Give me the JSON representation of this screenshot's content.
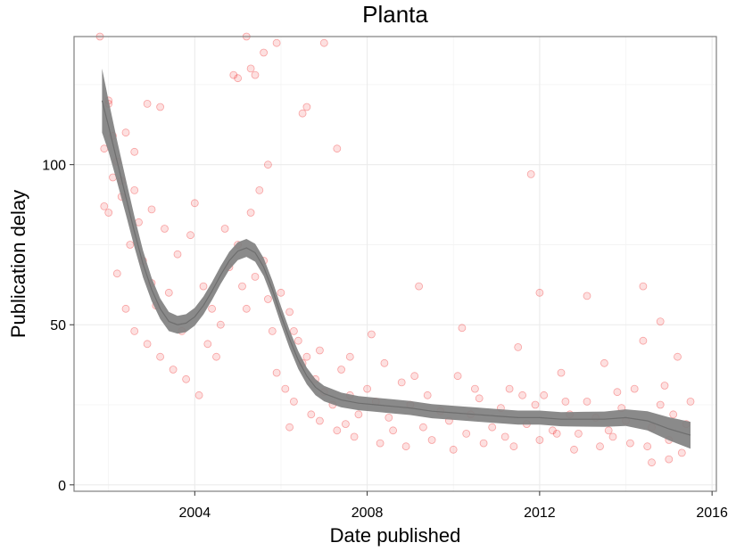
{
  "chart_data": {
    "type": "scatter",
    "title": "Planta",
    "xlabel": "Date published",
    "ylabel": "Publication delay",
    "xlim": [
      2001.2,
      2016.1
    ],
    "ylim": [
      -2,
      140
    ],
    "x_ticks": [
      {
        "value": 2004,
        "label": "2004"
      },
      {
        "value": 2008,
        "label": "2008"
      },
      {
        "value": 2012,
        "label": "2012"
      },
      {
        "value": 2016,
        "label": "2016"
      }
    ],
    "y_ticks": [
      {
        "value": 0,
        "label": "0"
      },
      {
        "value": 50,
        "label": "50"
      },
      {
        "value": 100,
        "label": "100"
      }
    ],
    "grid": true,
    "legend": "none",
    "colors": {
      "points": "#ee1111",
      "smooth_band": "#808080",
      "panel_border": "#7f7f7f",
      "grid": "#ebebeb"
    },
    "series": [
      {
        "kind": "points",
        "points": [
          [
            2001.8,
            140
          ],
          [
            2002.0,
            119
          ],
          [
            2002.3,
            95
          ],
          [
            2002.9,
            119
          ],
          [
            2003.2,
            118
          ],
          [
            2005.3,
            130
          ],
          [
            2005.4,
            128
          ],
          [
            2005.2,
            140
          ],
          [
            2005.6,
            135
          ],
          [
            2005.9,
            138
          ],
          [
            2007.0,
            138
          ],
          [
            2004.9,
            128
          ],
          [
            2005.0,
            127
          ],
          [
            2006.6,
            118
          ],
          [
            2006.5,
            116
          ],
          [
            2005.7,
            100
          ],
          [
            2007.3,
            105
          ],
          [
            2011.8,
            97
          ],
          [
            2012.0,
            60
          ],
          [
            2013.1,
            59
          ],
          [
            2014.4,
            62
          ],
          [
            2014.8,
            51
          ],
          [
            2002.1,
            109
          ],
          [
            2002.4,
            110
          ],
          [
            2002.6,
            104
          ],
          [
            2002.2,
            101
          ],
          [
            2001.9,
            105
          ],
          [
            2002.3,
            90
          ],
          [
            2002.0,
            85
          ],
          [
            2002.7,
            82
          ],
          [
            2003.0,
            86
          ],
          [
            2002.5,
            75
          ],
          [
            2002.8,
            70
          ],
          [
            2002.2,
            66
          ],
          [
            2003.3,
            80
          ],
          [
            2003.6,
            72
          ],
          [
            2004.0,
            88
          ],
          [
            2003.9,
            78
          ],
          [
            2003.4,
            60
          ],
          [
            2003.1,
            56
          ],
          [
            2004.2,
            62
          ],
          [
            2004.4,
            55
          ],
          [
            2002.4,
            55
          ],
          [
            2002.6,
            48
          ],
          [
            2002.9,
            44
          ],
          [
            2003.2,
            40
          ],
          [
            2003.5,
            36
          ],
          [
            2003.8,
            33
          ],
          [
            2004.1,
            28
          ],
          [
            2004.3,
            44
          ],
          [
            2004.6,
            50
          ],
          [
            2004.8,
            68
          ],
          [
            2005.1,
            62
          ],
          [
            2004.7,
            80
          ],
          [
            2005.3,
            85
          ],
          [
            2005.5,
            92
          ],
          [
            2005.2,
            55
          ],
          [
            2005.6,
            70
          ],
          [
            2005.8,
            48
          ],
          [
            2006.0,
            60
          ],
          [
            2006.2,
            54
          ],
          [
            2006.4,
            45
          ],
          [
            2006.6,
            40
          ],
          [
            2005.9,
            35
          ],
          [
            2006.1,
            30
          ],
          [
            2006.3,
            26
          ],
          [
            2006.5,
            38
          ],
          [
            2006.8,
            33
          ],
          [
            2007.0,
            29
          ],
          [
            2007.2,
            25
          ],
          [
            2007.4,
            36
          ],
          [
            2007.6,
            28
          ],
          [
            2007.8,
            22
          ],
          [
            2008.0,
            30
          ],
          [
            2008.1,
            47
          ],
          [
            2008.2,
            26
          ],
          [
            2008.5,
            21
          ],
          [
            2008.8,
            32
          ],
          [
            2009.0,
            25
          ],
          [
            2009.2,
            62
          ],
          [
            2009.4,
            28
          ],
          [
            2009.7,
            23
          ],
          [
            2009.9,
            20
          ],
          [
            2010.1,
            34
          ],
          [
            2010.2,
            49
          ],
          [
            2010.4,
            22
          ],
          [
            2010.6,
            27
          ],
          [
            2010.9,
            18
          ],
          [
            2011.1,
            24
          ],
          [
            2011.3,
            30
          ],
          [
            2011.5,
            43
          ],
          [
            2011.7,
            19
          ],
          [
            2011.9,
            25
          ],
          [
            2012.1,
            28
          ],
          [
            2012.3,
            17
          ],
          [
            2012.5,
            35
          ],
          [
            2012.7,
            22
          ],
          [
            2012.9,
            16
          ],
          [
            2013.1,
            26
          ],
          [
            2013.3,
            21
          ],
          [
            2013.5,
            38
          ],
          [
            2013.7,
            15
          ],
          [
            2013.9,
            24
          ],
          [
            2014.0,
            20
          ],
          [
            2014.2,
            30
          ],
          [
            2014.4,
            45
          ],
          [
            2014.5,
            12
          ],
          [
            2014.6,
            18
          ],
          [
            2014.8,
            25
          ],
          [
            2015.0,
            14
          ],
          [
            2015.1,
            22
          ],
          [
            2015.2,
            40
          ],
          [
            2015.3,
            10
          ],
          [
            2015.4,
            19
          ],
          [
            2015.5,
            26
          ],
          [
            2015.0,
            8
          ],
          [
            2014.6,
            7
          ],
          [
            2006.9,
            20
          ],
          [
            2007.3,
            17
          ],
          [
            2007.7,
            15
          ],
          [
            2008.3,
            13
          ],
          [
            2008.9,
            12
          ],
          [
            2009.5,
            14
          ],
          [
            2010.0,
            11
          ],
          [
            2010.7,
            13
          ],
          [
            2011.4,
            12
          ],
          [
            2012.0,
            14
          ],
          [
            2012.8,
            11
          ],
          [
            2013.4,
            12
          ],
          [
            2014.1,
            13
          ],
          [
            2006.2,
            18
          ],
          [
            2006.7,
            22
          ],
          [
            2007.5,
            19
          ],
          [
            2008.6,
            17
          ],
          [
            2009.3,
            18
          ],
          [
            2010.3,
            16
          ],
          [
            2011.2,
            15
          ],
          [
            2012.4,
            16
          ],
          [
            2013.6,
            17
          ],
          [
            2002.0,
            120
          ],
          [
            2002.1,
            96
          ],
          [
            2001.9,
            87
          ],
          [
            2002.6,
            92
          ],
          [
            2003.0,
            63
          ],
          [
            2003.7,
            48
          ],
          [
            2004.5,
            40
          ],
          [
            2005.0,
            75
          ],
          [
            2005.4,
            65
          ],
          [
            2005.7,
            58
          ],
          [
            2006.3,
            48
          ],
          [
            2006.9,
            42
          ],
          [
            2007.6,
            40
          ],
          [
            2008.4,
            38
          ],
          [
            2009.1,
            34
          ],
          [
            2010.5,
            30
          ],
          [
            2011.6,
            28
          ],
          [
            2012.6,
            26
          ],
          [
            2013.8,
            29
          ],
          [
            2014.9,
            31
          ]
        ]
      },
      {
        "kind": "smooth",
        "points": [
          [
            2001.85,
            120
          ],
          [
            2002.0,
            112
          ],
          [
            2002.2,
            101
          ],
          [
            2002.4,
            90
          ],
          [
            2002.6,
            79
          ],
          [
            2002.8,
            69
          ],
          [
            2003.0,
            61
          ],
          [
            2003.2,
            55
          ],
          [
            2003.4,
            51
          ],
          [
            2003.6,
            50
          ],
          [
            2003.8,
            50.5
          ],
          [
            2004.0,
            52.5
          ],
          [
            2004.2,
            56
          ],
          [
            2004.4,
            60.5
          ],
          [
            2004.6,
            65.5
          ],
          [
            2004.8,
            70
          ],
          [
            2005.0,
            73
          ],
          [
            2005.2,
            74
          ],
          [
            2005.4,
            72.5
          ],
          [
            2005.6,
            68
          ],
          [
            2005.8,
            61
          ],
          [
            2006.0,
            53
          ],
          [
            2006.2,
            45.5
          ],
          [
            2006.4,
            39
          ],
          [
            2006.6,
            34
          ],
          [
            2006.8,
            30.5
          ],
          [
            2007.0,
            28.5
          ],
          [
            2007.4,
            26.5
          ],
          [
            2007.8,
            25.5
          ],
          [
            2008.2,
            25
          ],
          [
            2008.6,
            24.5
          ],
          [
            2009.0,
            24
          ],
          [
            2009.5,
            23
          ],
          [
            2010.0,
            22.5
          ],
          [
            2010.5,
            22
          ],
          [
            2011.0,
            21.5
          ],
          [
            2011.5,
            21
          ],
          [
            2012.0,
            21
          ],
          [
            2012.5,
            20.5
          ],
          [
            2013.0,
            20.5
          ],
          [
            2013.5,
            20.5
          ],
          [
            2014.0,
            21
          ],
          [
            2014.5,
            20
          ],
          [
            2015.0,
            17.5
          ],
          [
            2015.5,
            15.5
          ]
        ],
        "band_halfwidth": [
          10,
          8,
          6.5,
          5.5,
          4.8,
          4.2,
          3.6,
          3.2,
          3,
          2.8,
          2.8,
          2.8,
          2.8,
          2.8,
          2.8,
          2.8,
          2.8,
          2.8,
          2.8,
          2.8,
          2.8,
          2.8,
          2.8,
          2.8,
          2.6,
          2.5,
          2.4,
          2.3,
          2.2,
          2.2,
          2.2,
          2.2,
          2.2,
          2.2,
          2.2,
          2.2,
          2.2,
          2.2,
          2.2,
          2.3,
          2.4,
          2.6,
          3,
          3.6,
          4.2
        ]
      }
    ]
  }
}
